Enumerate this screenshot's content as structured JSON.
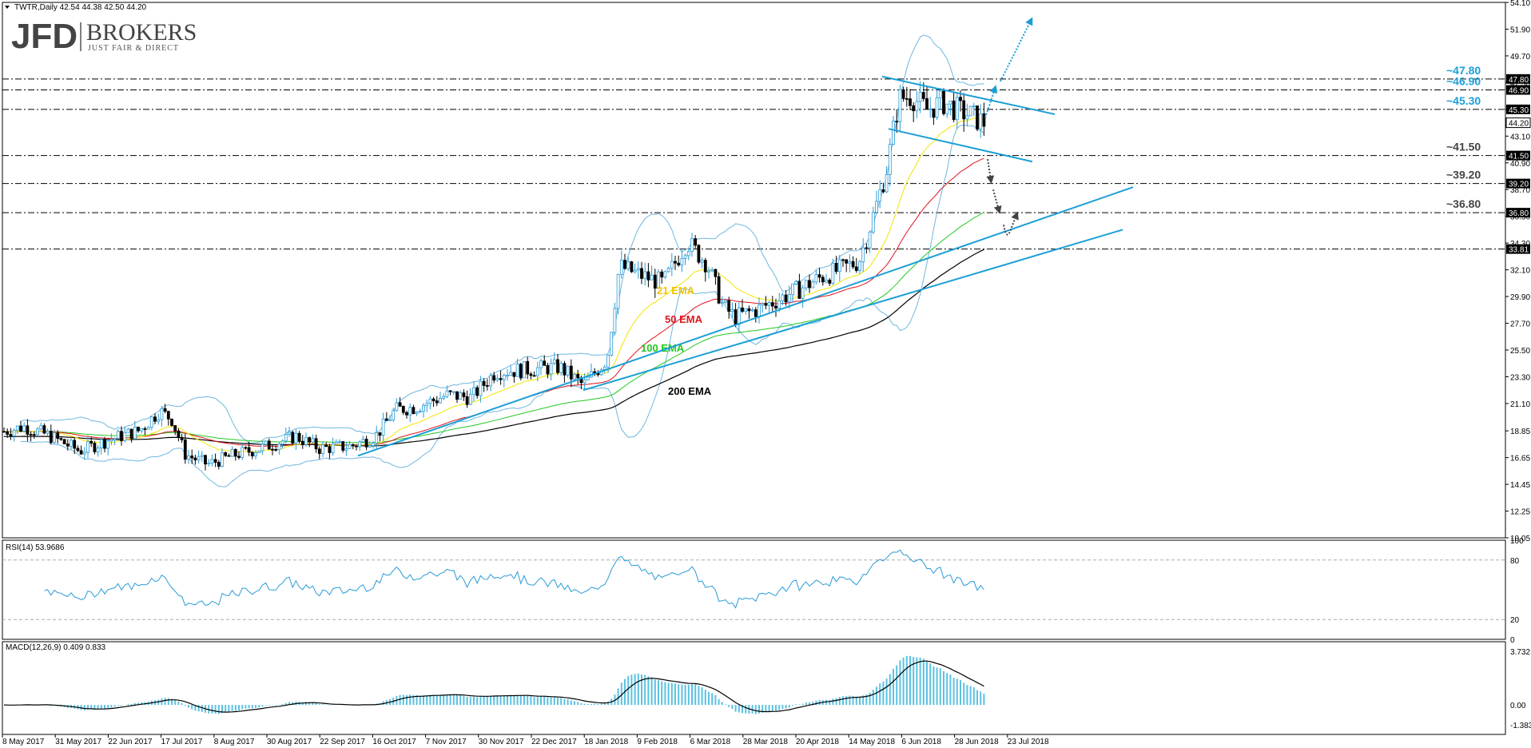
{
  "header": {
    "symbol_line": "TWTR,Daily  42.54 44.38 42.50 44.20"
  },
  "logo": {
    "brand": "JFD",
    "name": "BROKERS",
    "tagline": "JUST FAIR & DIRECT"
  },
  "chart_data": {
    "type": "candlestick",
    "symbol": "TWTR",
    "timeframe": "Daily",
    "ohlc_last": {
      "open": 42.54,
      "high": 44.38,
      "low": 42.5,
      "close": 44.2
    },
    "price_axis": {
      "ylim": [
        10.05,
        54.1
      ],
      "ticks": [
        "54.10",
        "51.90",
        "49.70",
        "47.50",
        "45.30",
        "43.10",
        "40.90",
        "38.70",
        "36.50",
        "34.30",
        "32.10",
        "29.90",
        "27.70",
        "25.50",
        "23.30",
        "21.10",
        "18.85",
        "16.65",
        "14.45",
        "12.25",
        "10.05"
      ]
    },
    "x_axis": {
      "tick_labels": [
        "8 May 2017",
        "31 May 2017",
        "22 Jun 2017",
        "17 Jul 2017",
        "8 Aug 2017",
        "30 Aug 2017",
        "22 Sep 2017",
        "16 Oct 2017",
        "7 Nov 2017",
        "30 Nov 2017",
        "22 Dec 2017",
        "18 Jan 2018",
        "9 Feb 2018",
        "6 Mar 2018",
        "28 Mar 2018",
        "20 Apr 2018",
        "14 May 2018",
        "6 Jun 2018",
        "28 Jun 2018",
        "23 Jul 2018"
      ]
    },
    "horizontal_levels": [
      {
        "value": 47.8,
        "label": "~47.80",
        "tag": "47.80"
      },
      {
        "value": 46.9,
        "label": "~46.90",
        "tag": "46.90"
      },
      {
        "value": 45.3,
        "label": "~45.30",
        "tag": "45.30"
      },
      {
        "value": 41.5,
        "label": "~41.50",
        "tag": "41.50"
      },
      {
        "value": 39.2,
        "label": "~39.20",
        "tag": "39.20"
      },
      {
        "value": 36.8,
        "label": "~36.80",
        "tag": "36.80"
      },
      {
        "value": 33.81,
        "label": "",
        "tag": "33.81"
      }
    ],
    "current_price_tag": "44.20",
    "ema_labels": [
      {
        "text": "21 EMA",
        "color": "#f2c200"
      },
      {
        "text": "50 EMA",
        "color": "#e0141c"
      },
      {
        "text": "100 EMA",
        "color": "#22c81e"
      },
      {
        "text": "200 EMA",
        "color": "#000000"
      }
    ],
    "rsi": {
      "title": "RSI(14) 53.9686",
      "ylim": [
        0,
        100
      ],
      "ticks": [
        "100",
        "80",
        "20",
        "0"
      ],
      "levels": [
        80,
        20
      ],
      "color": "#2a9bd6"
    },
    "macd": {
      "title": "MACD(12,26,9) 0.409 0.833",
      "ticks": [
        "3.732",
        "0.00",
        "-1.383"
      ],
      "ylim": [
        -1.383,
        3.732
      ],
      "histogram_color": "#5bc1e0",
      "signal_color": "#000000"
    },
    "colors": {
      "up_candle": "#2a9bd6",
      "down_candle": "#000000",
      "bollinger": "#6fb7e0",
      "trendline": "#1b9fd6",
      "level_line": "#000000",
      "ema21": "#f2e600",
      "ema50": "#e0141c",
      "ema100": "#22c81e",
      "ema200": "#000000",
      "arrow_up": "#1b9fd6",
      "arrow_down": "#444444"
    }
  }
}
